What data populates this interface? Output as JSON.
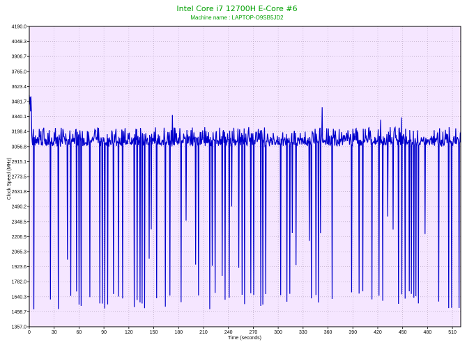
{
  "chart_data": {
    "type": "line",
    "title": "Intel Core i7 12700H E-Core #6",
    "subtitle": "Machine name : LAPTOP-O9SB5JD2",
    "xlabel": "Time (seconds)",
    "ylabel": "Clock Speed (MHz)",
    "xlim": [
      0,
      520
    ],
    "ylim": [
      1357.0,
      4190.0
    ],
    "x_ticks": [
      0,
      30,
      60,
      90,
      120,
      150,
      180,
      210,
      240,
      270,
      300,
      330,
      360,
      390,
      420,
      450,
      480,
      510
    ],
    "y_ticks": [
      "1357.0",
      "1498.7",
      "1640.3",
      "1782.0",
      "1923.6",
      "2065.3",
      "2206.9",
      "2348.5",
      "2490.2",
      "2631.8",
      "2773.5",
      "2915.1",
      "3056.8",
      "3198.4",
      "3340.1",
      "3481.7",
      "3623.4",
      "3765.0",
      "3906.7",
      "4048.3",
      "4190.0"
    ],
    "grid": true,
    "series": [
      {
        "color": "#0000cc",
        "baseline_mhz": 3100,
        "upper_band_mhz": [
          3056.8,
          3240.0
        ],
        "spike_low_mhz": [
          1520.0,
          1700.0
        ],
        "initial_peak_mhz": 3560.0
      }
    ],
    "colors": {
      "plot_bg": "#f5e6ff",
      "line": "#0000cc",
      "grid": "#b0a0c0",
      "title": "#00a000",
      "frame": "#000000"
    }
  }
}
